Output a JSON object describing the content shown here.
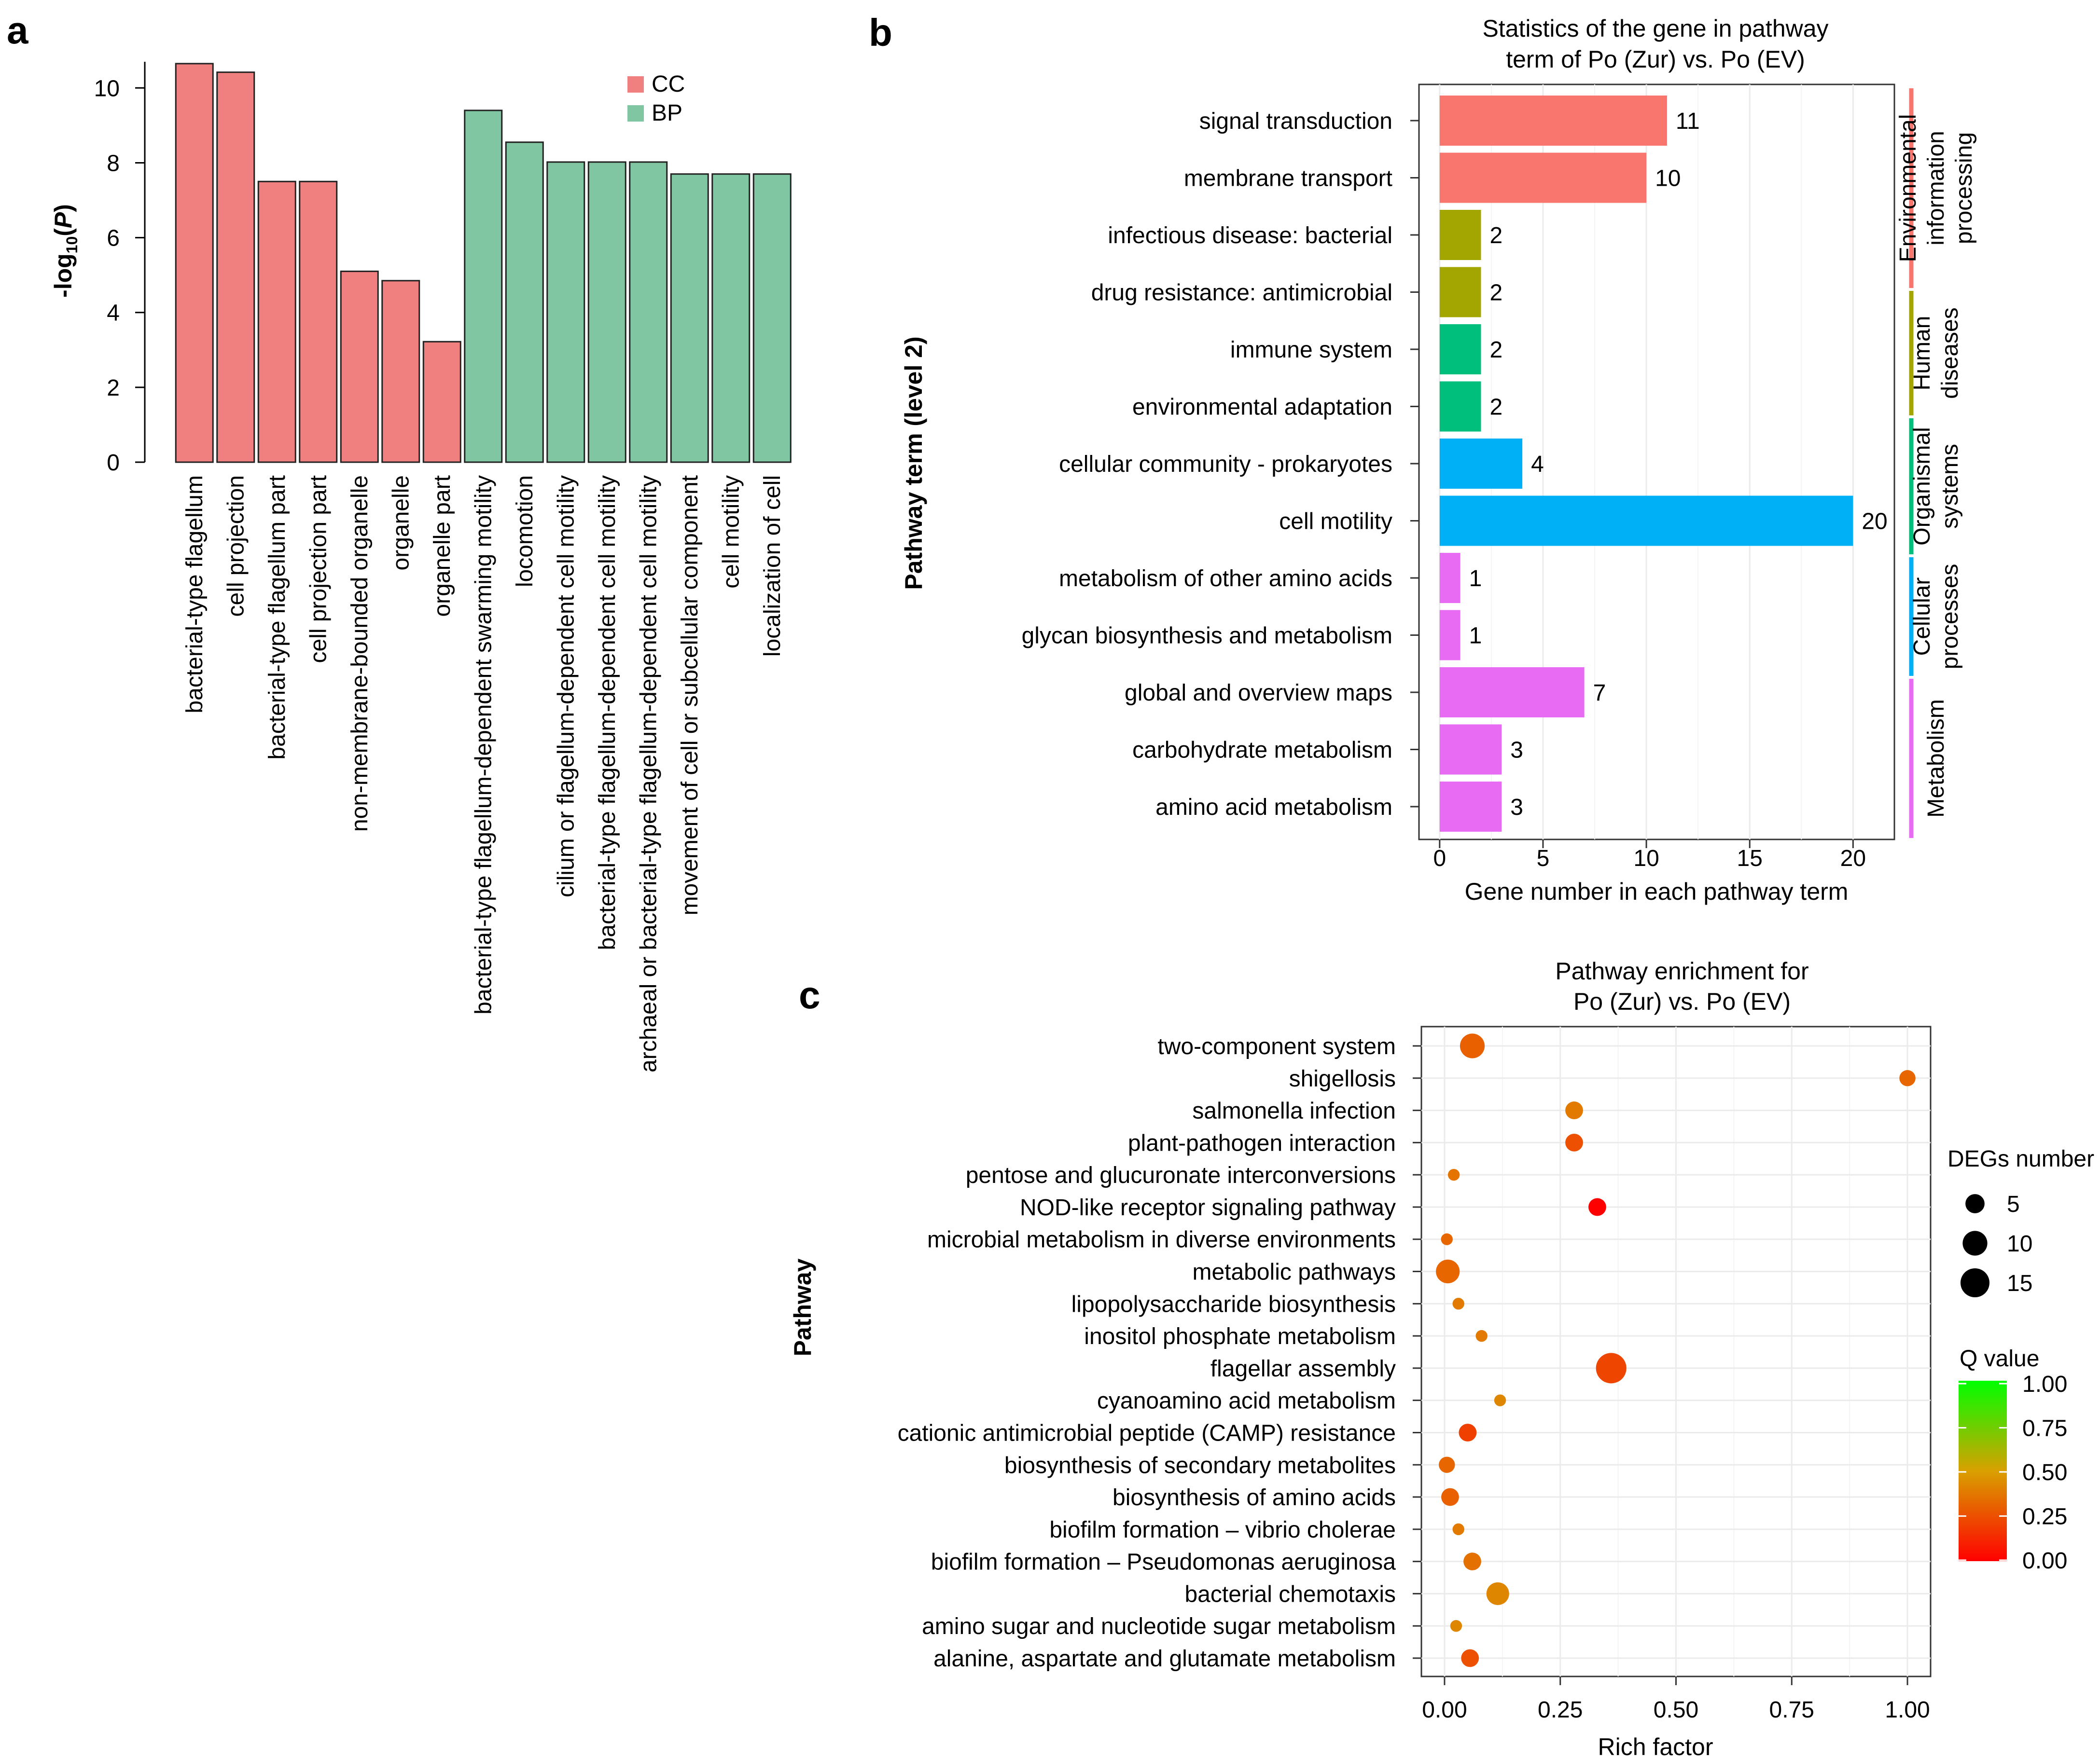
{
  "panel_labels": {
    "a": "a",
    "b": "b",
    "c": "c"
  },
  "chart_data": [
    {
      "id": "a",
      "type": "bar",
      "ylabel_parts": [
        "-log",
        "10",
        "(",
        "P",
        ")"
      ],
      "ylim": [
        0,
        10.7
      ],
      "yticks": [
        "0",
        "2",
        "4",
        "6",
        "8",
        "10"
      ],
      "legend": [
        {
          "name": "CC",
          "color": "#F08080"
        },
        {
          "name": "BP",
          "color": "#80C6A3"
        }
      ],
      "categories": [
        "bacterial-type flagellum",
        "cell projection",
        "bacterial-type flagellum part",
        "cell projection part",
        "non-membrane-bounded organelle",
        "organelle",
        "organelle part",
        "bacterial-type flagellum-dependent swarming motility",
        "locomotion",
        "cilium or flagellum-dependent cell motility",
        "bacterial-type flagellum-dependent cell motility",
        "archaeal or bacterial-type flagellum-dependent cell motility",
        "movement of cell or subcellular component",
        "cell motility",
        "localization of cell"
      ],
      "values": [
        10.65,
        10.42,
        7.5,
        7.5,
        5.1,
        4.85,
        3.22,
        9.4,
        8.55,
        8.02,
        8.02,
        8.02,
        7.7,
        7.7,
        7.7
      ],
      "groups": [
        "CC",
        "CC",
        "CC",
        "CC",
        "CC",
        "CC",
        "CC",
        "BP",
        "BP",
        "BP",
        "BP",
        "BP",
        "BP",
        "BP",
        "BP"
      ]
    },
    {
      "id": "b",
      "type": "bar",
      "orientation": "horizontal",
      "title_lines": [
        "Statistics of the gene in pathway",
        "term of Po (Zur) vs. Po (EV)"
      ],
      "xlabel": "Gene number in each pathway term",
      "ylabel": "Pathway term (level 2)",
      "xlim": [
        -1,
        22
      ],
      "xticks": [
        0,
        5,
        10,
        15,
        20
      ],
      "categories": [
        "signal transduction",
        "membrane transport",
        "infectious disease: bacterial",
        "drug resistance: antimicrobial",
        "immune system",
        "environmental adaptation",
        "cellular community - prokaryotes",
        "cell motility",
        "metabolism of other amino acids",
        "glycan biosynthesis and metabolism",
        "global and overview maps",
        "carbohydrate metabolism",
        "amino acid metabolism"
      ],
      "values": [
        11,
        10,
        2,
        2,
        2,
        2,
        4,
        20,
        1,
        1,
        7,
        3,
        3
      ],
      "value_labels": [
        "11",
        "10",
        "2",
        "2",
        "2",
        "2",
        "4",
        "20",
        "1",
        "1",
        "7",
        "3",
        "3"
      ],
      "colors": [
        "#F8766D",
        "#F8766D",
        "#A3A500",
        "#A3A500",
        "#00BF7D",
        "#00BF7D",
        "#00B0F6",
        "#00B0F6",
        "#E76BF3",
        "#E76BF3",
        "#E76BF3",
        "#E76BF3",
        "#E76BF3"
      ],
      "side_groups": [
        {
          "lines": [
            "Environmental",
            "information",
            "processing"
          ],
          "color": "#F8766D",
          "from": 0,
          "to": 3.5
        },
        {
          "lines": [
            "Human",
            "diseases"
          ],
          "color": "#A3A500",
          "from": 3.5,
          "to": 5.7
        },
        {
          "lines": [
            "Organismal",
            "systems"
          ],
          "color": "#00BF7D",
          "from": 5.7,
          "to": 8.1
        },
        {
          "lines": [
            "Cellular",
            "processes"
          ],
          "color": "#00B0F6",
          "from": 8.1,
          "to": 10.2
        },
        {
          "lines": [
            "Metabolism"
          ],
          "color": "#E76BF3",
          "from": 10.2,
          "to": 13
        }
      ]
    },
    {
      "id": "c",
      "type": "scatter",
      "title_lines": [
        "Pathway enrichment for",
        "Po (Zur) vs. Po (EV)"
      ],
      "xlabel": "Rich factor",
      "ylabel": "Pathway",
      "xlim": [
        -0.05,
        1.05
      ],
      "xticks": [
        "0.00",
        "0.25",
        "0.50",
        "0.75",
        "1.00"
      ],
      "categories": [
        "two-component system",
        "shigellosis",
        "salmonella infection",
        "plant-pathogen interaction",
        "pentose and glucuronate interconversions",
        "NOD-like receptor signaling pathway",
        "microbial metabolism in diverse environments",
        "metabolic pathways",
        "lipopolysaccharide biosynthesis",
        "inositol phosphate metabolism",
        "flagellar assembly",
        "cyanoamino acid metabolism",
        "cationic antimicrobial peptide (CAMP) resistance",
        "biosynthesis of secondary metabolites",
        "biosynthesis of amino acids",
        "biofilm formation – vibrio cholerae",
        "biofilm formation – Pseudomonas aeruginosa",
        "bacterial chemotaxis",
        "amino sugar and nucleotide sugar metabolism",
        "alanine, aspartate and glutamate metabolism"
      ],
      "rich_factor": [
        0.06,
        1.0,
        0.28,
        0.28,
        0.02,
        0.33,
        0.005,
        0.007,
        0.03,
        0.08,
        0.36,
        0.12,
        0.05,
        0.005,
        0.012,
        0.03,
        0.06,
        0.115,
        0.025,
        0.055
      ],
      "degs": [
        10,
        3,
        4,
        4,
        1,
        4,
        1,
        9,
        1,
        1,
        17,
        1,
        4,
        3,
        4,
        1,
        4,
        8,
        1,
        4
      ],
      "q_value": [
        0.3,
        0.32,
        0.38,
        0.25,
        0.36,
        0.0,
        0.32,
        0.32,
        0.38,
        0.38,
        0.22,
        0.42,
        0.2,
        0.32,
        0.3,
        0.38,
        0.35,
        0.42,
        0.42,
        0.25
      ],
      "size_legend": {
        "title": "DEGs number",
        "values": [
          5,
          10,
          15
        ]
      },
      "color_legend": {
        "title": "Q value",
        "ticks": [
          "1.00",
          "0.75",
          "0.50",
          "0.25",
          "0.00"
        ]
      }
    }
  ]
}
